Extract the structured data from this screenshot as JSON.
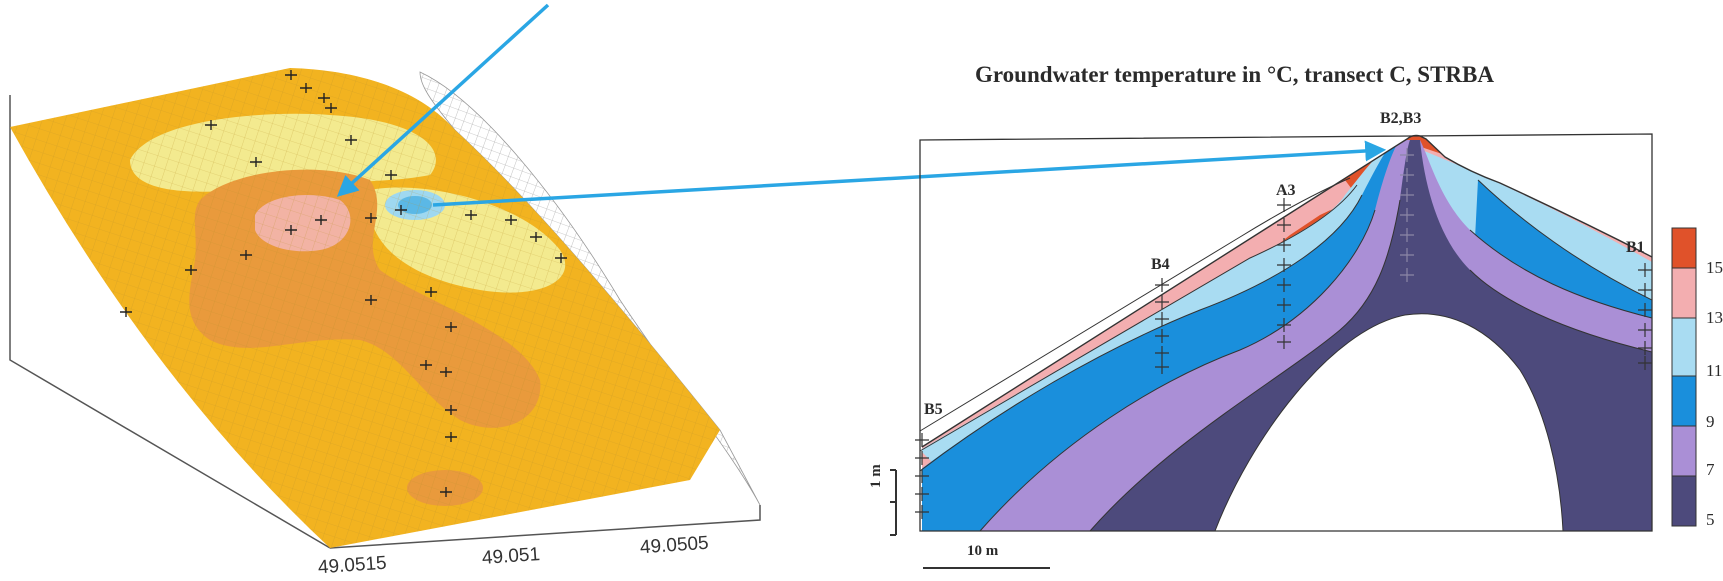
{
  "section": {
    "title": "Groundwater temperature in °C, transect C, STRBA",
    "borehole_labels": [
      "B5",
      "B4",
      "A3",
      "B2,B3",
      "B1"
    ],
    "scale_vertical": "1 m",
    "scale_horizontal": "10 m"
  },
  "legend": {
    "ticks": [
      "15",
      "13",
      "11",
      "9",
      "7",
      "5"
    ],
    "colors": [
      "#e0522a",
      "#f3aeb0",
      "#a9dcf2",
      "#1a8fdc",
      "#aa8fd6",
      "#4d4a7c"
    ]
  },
  "surface_plot": {
    "axis_ticks": [
      "49.0515",
      "49.051",
      "49.0505"
    ],
    "colors": {
      "base": "#f2b320",
      "orange_zone": "#e99a3c",
      "pink_zone": "#f2b3a4",
      "light_zone": "#f3ea8f",
      "cold_spot": "#6fc4ea",
      "arrow": "#2aa6e4"
    }
  }
}
